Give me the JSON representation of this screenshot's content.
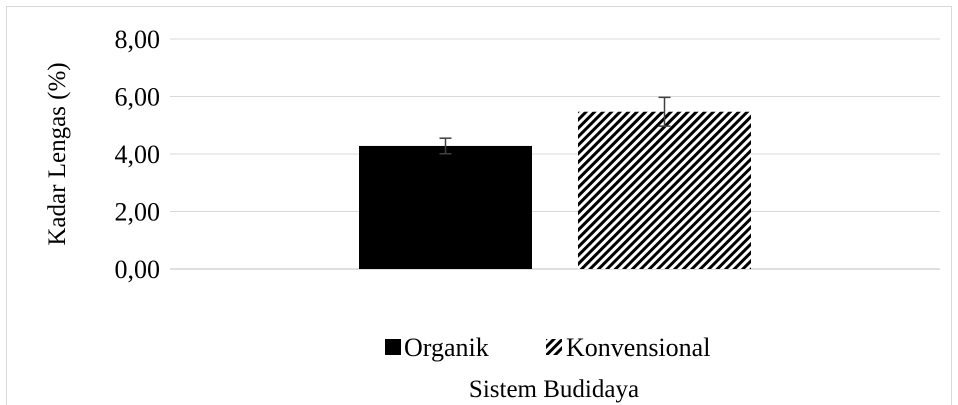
{
  "chart_data": {
    "type": "bar",
    "title": "",
    "xlabel": "Sistem Budidaya",
    "ylabel": "Kadar Lengas (%)",
    "ylim": [
      0,
      8
    ],
    "yticks": [
      "0,00",
      "2,00",
      "4,00",
      "6,00",
      "8,00"
    ],
    "grid": true,
    "legend_position": "bottom",
    "categories": [
      ""
    ],
    "series": [
      {
        "name": "Organik",
        "values": [
          4.28
        ],
        "error": [
          0.27
        ],
        "fill": "solid",
        "color": "#000000"
      },
      {
        "name": "Konvensional",
        "values": [
          5.47
        ],
        "error": [
          0.5
        ],
        "fill": "diagonal-stripes",
        "color": "#000000"
      }
    ]
  }
}
